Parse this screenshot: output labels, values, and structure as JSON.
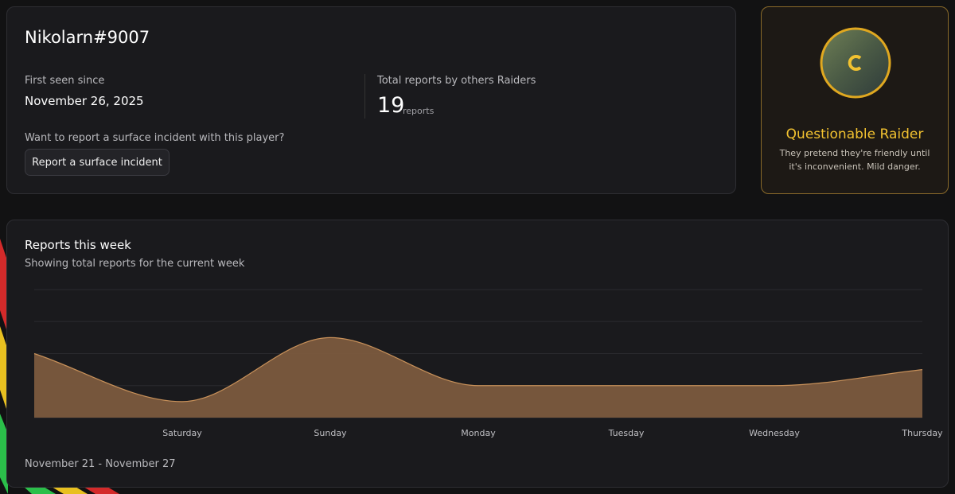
{
  "profile": {
    "player_name": "Nikolarn#9007",
    "first_seen_label": "First seen since",
    "first_seen_date": "November 26, 2025",
    "reports_label": "Total reports by others Raiders",
    "reports_count": "19",
    "reports_unit": "reports",
    "report_prompt": "Want to report a surface incident with this player?",
    "report_button": "Report a surface incident"
  },
  "badge": {
    "title": "Questionable Raider",
    "description": "They pretend they're friendly until it's inconvenient. Mild danger."
  },
  "chart_data": {
    "type": "area",
    "title": "Reports this week",
    "subtitle": "Showing total reports for the current week",
    "categories": [
      null,
      "Saturday",
      "Sunday",
      "Monday",
      "Tuesday",
      "Wednesday",
      "Thursday"
    ],
    "values": [
      4,
      1,
      5,
      2,
      2,
      2,
      3
    ],
    "ylim": [
      0,
      8
    ],
    "yticks": [
      0,
      2,
      4,
      6,
      8
    ],
    "grid": true,
    "color": "#7b5a3e",
    "line_color": "#c8915a",
    "footer": "November 21 - November 27"
  }
}
